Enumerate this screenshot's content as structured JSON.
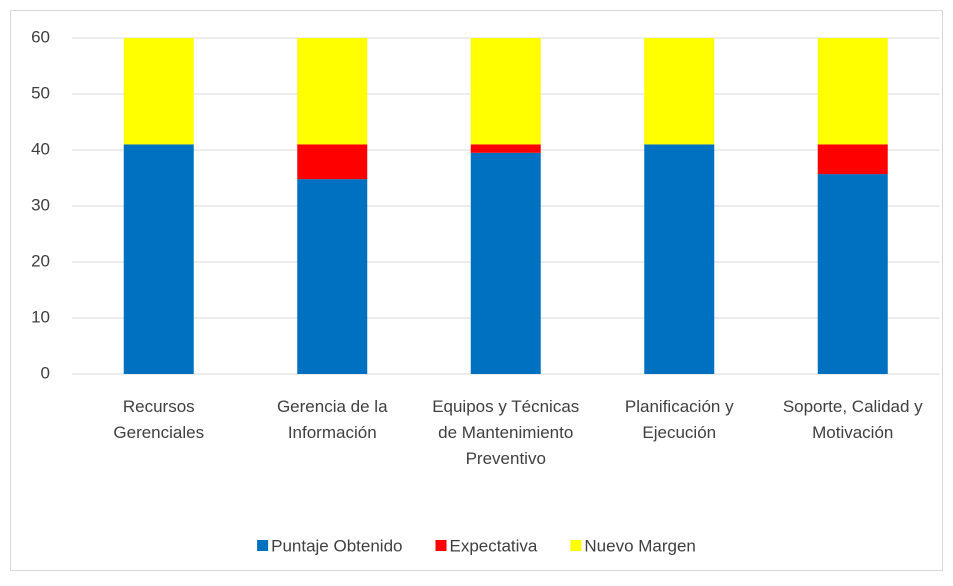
{
  "chart_data": {
    "type": "stacked_bar",
    "categories": [
      "Recursos Gerenciales",
      "Gerencia de la Información",
      "Equipos y Técnicas de Mantenimiento Preventivo",
      "Planificación y Ejecución",
      "Soporte, Calidad y Motivación"
    ],
    "series": [
      {
        "name": "Puntaje Obtenido",
        "color": "#0070c0",
        "values": [
          41,
          34.8,
          39.5,
          41,
          35.7
        ]
      },
      {
        "name": "Expectativa",
        "color": "#ff0000",
        "values": [
          0,
          6.2,
          1.5,
          0,
          5.3
        ]
      },
      {
        "name": "Nuevo Margen",
        "color": "#ffff00",
        "values": [
          19,
          19,
          19,
          19,
          19
        ]
      }
    ],
    "ylim": [
      0,
      60
    ],
    "yticks": [
      0,
      10,
      20,
      30,
      40,
      50,
      60
    ],
    "grid": true,
    "legend": "bottom"
  }
}
